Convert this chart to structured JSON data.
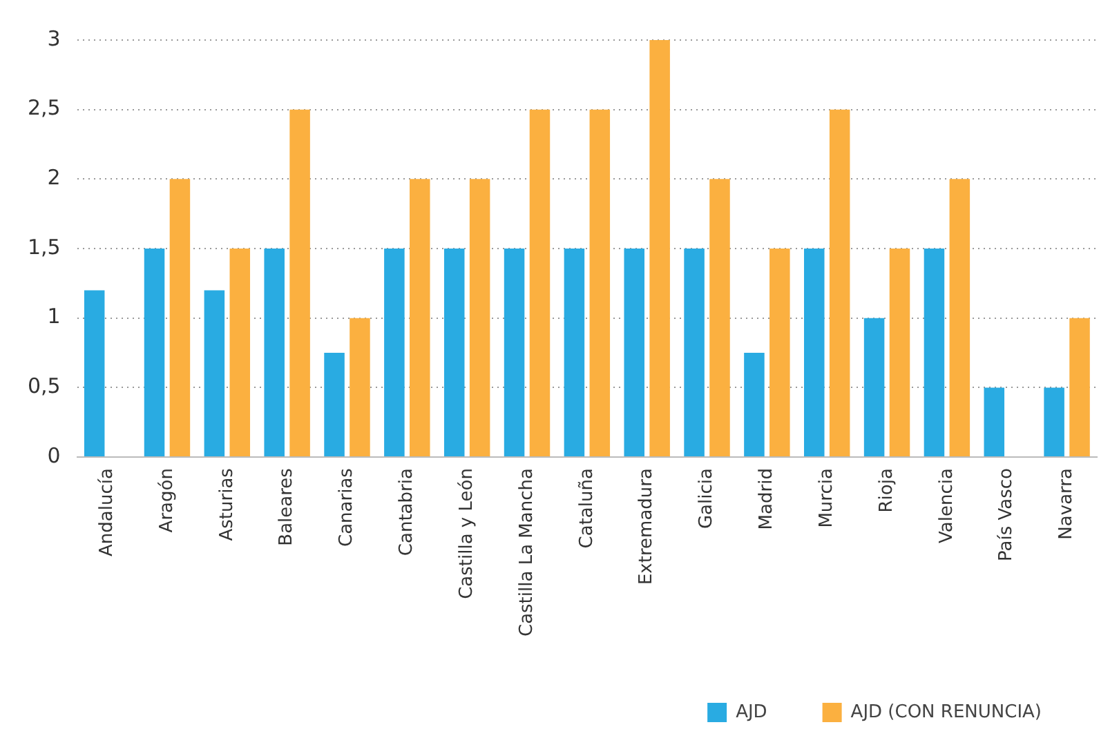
{
  "chart_data": {
    "type": "bar",
    "categories": [
      "Andalucía",
      "Aragón",
      "Asturias",
      "Baleares",
      "Canarias",
      "Cantabria",
      "Castilla y León",
      "Castilla La Mancha",
      "Cataluña",
      "Extremadura",
      "Galicia",
      "Madrid",
      "Murcia",
      "Rioja",
      "Valencia",
      "País Vasco",
      "Navarra"
    ],
    "series": [
      {
        "name": "AJD",
        "color": "#29abe2",
        "values": [
          1.2,
          1.5,
          1.2,
          1.5,
          0.75,
          1.5,
          1.5,
          1.5,
          1.5,
          1.5,
          1.5,
          0.75,
          1.5,
          1,
          1.5,
          0.5,
          0.5
        ]
      },
      {
        "name": "AJD (CON RENUNCIA)",
        "color": "#fbb040",
        "values": [
          null,
          2,
          1.5,
          2.5,
          1,
          2,
          2,
          2.5,
          2.5,
          3,
          2,
          1.5,
          2.5,
          1.5,
          2,
          null,
          1
        ]
      }
    ],
    "ylim": [
      0,
      3
    ],
    "yticks": [
      0,
      {
        "value": 0.5,
        "label": "0,5"
      },
      1,
      {
        "value": 1.5,
        "label": "1,5"
      },
      2,
      {
        "value": 2.5,
        "label": "2,5"
      },
      3
    ],
    "grid": "y",
    "legend": "bottom right"
  }
}
